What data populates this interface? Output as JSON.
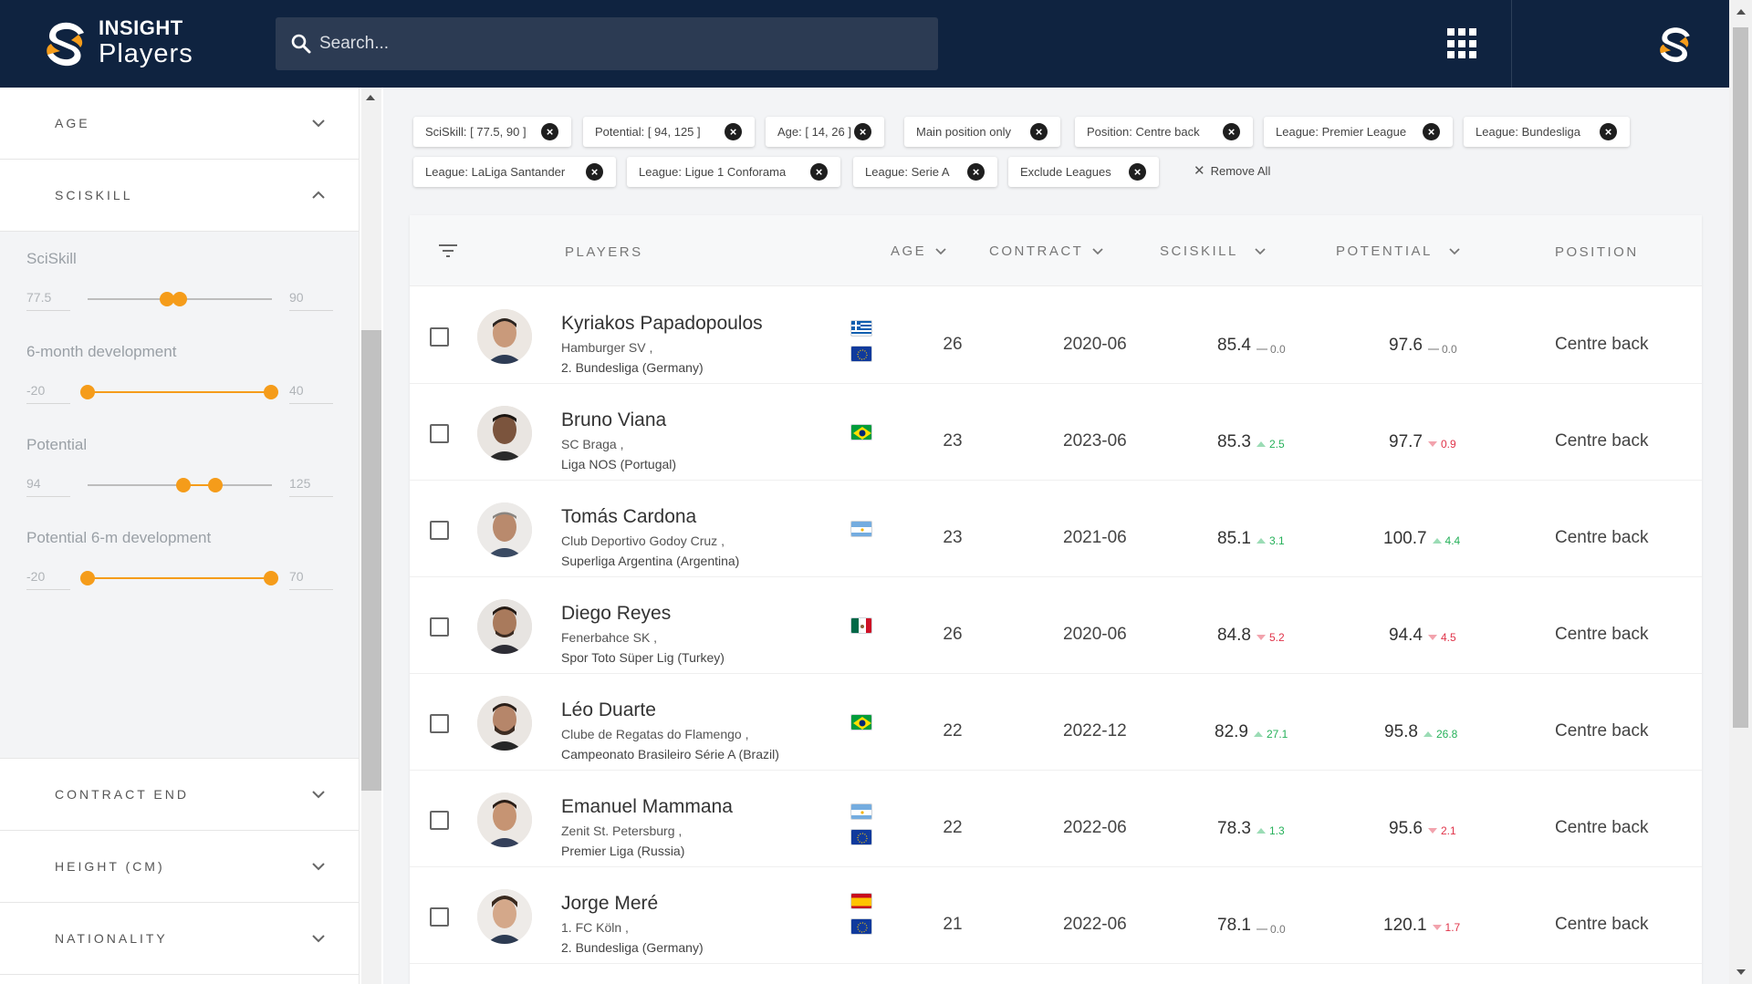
{
  "brand": {
    "line1": "INSIGHT",
    "line2": "Players"
  },
  "search": {
    "placeholder": "Search..."
  },
  "sidebar": {
    "age_title": "AGE",
    "sciskill_title": "SCISKILL",
    "filters": [
      {
        "label": "SciSkill",
        "min": "77.5",
        "max": "90"
      },
      {
        "label": "6-month development",
        "min": "-20",
        "max": "40"
      },
      {
        "label": "Potential",
        "min": "94",
        "max": "125"
      },
      {
        "label": "Potential 6-m development",
        "min": "-20",
        "max": "70"
      }
    ],
    "contract_title": "CONTRACT END",
    "height_title": "HEIGHT (CM)",
    "nationality_title": "NATIONALITY"
  },
  "chips": [
    "SciSkill: [ 77.5, 90 ]",
    "Potential: [ 94, 125 ]",
    "Age: [ 14, 26 ]",
    "Main position only",
    "Position: Centre back",
    "League: Premier League",
    "League: Bundesliga",
    "League: LaLiga Santander",
    "League: Ligue 1 Conforama",
    "League: Serie A",
    "Exclude Leagues"
  ],
  "remove_all": "Remove All",
  "table": {
    "headers": {
      "players": "PLAYERS",
      "age": "AGE",
      "contract": "CONTRACT",
      "sciskill": "SCISKILL",
      "potential": "POTENTIAL",
      "position": "POSITION"
    },
    "rows": [
      {
        "name": "Kyriakos Papadopoulos",
        "club": "Hamburger SV ,",
        "league": "2. Bundesliga (Germany)",
        "flags": [
          "greece",
          "eu"
        ],
        "age": "26",
        "contract": "2020-06",
        "sciskill": "85.4",
        "sciskill_trend": "0.0",
        "sciskill_dir": "flat",
        "potential": "97.6",
        "potential_trend": "0.0",
        "potential_dir": "flat",
        "position": "Centre back"
      },
      {
        "name": "Bruno Viana",
        "club": "SC Braga ,",
        "league": "Liga NOS (Portugal)",
        "flags": [
          "brazil"
        ],
        "age": "23",
        "contract": "2023-06",
        "sciskill": "85.3",
        "sciskill_trend": "2.5",
        "sciskill_dir": "up",
        "potential": "97.7",
        "potential_trend": "0.9",
        "potential_dir": "down",
        "position": "Centre back"
      },
      {
        "name": "Tomás Cardona",
        "club": "Club Deportivo Godoy Cruz ,",
        "league": "Superliga Argentina (Argentina)",
        "flags": [
          "argentina"
        ],
        "age": "23",
        "contract": "2021-06",
        "sciskill": "85.1",
        "sciskill_trend": "3.1",
        "sciskill_dir": "up",
        "potential": "100.7",
        "potential_trend": "4.4",
        "potential_dir": "up",
        "position": "Centre back"
      },
      {
        "name": "Diego Reyes",
        "club": "Fenerbahce SK ,",
        "league": "Spor Toto Süper Lig (Turkey)",
        "flags": [
          "mexico"
        ],
        "age": "26",
        "contract": "2020-06",
        "sciskill": "84.8",
        "sciskill_trend": "5.2",
        "sciskill_dir": "down",
        "potential": "94.4",
        "potential_trend": "4.5",
        "potential_dir": "down",
        "position": "Centre back"
      },
      {
        "name": "Léo Duarte",
        "club": "Clube de Regatas do Flamengo ,",
        "league": "Campeonato Brasileiro Série A (Brazil)",
        "flags": [
          "brazil"
        ],
        "age": "22",
        "contract": "2022-12",
        "sciskill": "82.9",
        "sciskill_trend": "27.1",
        "sciskill_dir": "up",
        "potential": "95.8",
        "potential_trend": "26.8",
        "potential_dir": "up",
        "position": "Centre back"
      },
      {
        "name": "Emanuel Mammana",
        "club": "Zenit St. Petersburg ,",
        "league": "Premier Liga (Russia)",
        "flags": [
          "argentina",
          "eu"
        ],
        "age": "22",
        "contract": "2022-06",
        "sciskill": "78.3",
        "sciskill_trend": "1.3",
        "sciskill_dir": "up",
        "potential": "95.6",
        "potential_trend": "2.1",
        "potential_dir": "down",
        "position": "Centre back"
      },
      {
        "name": "Jorge Meré",
        "club": "1. FC Köln ,",
        "league": "2. Bundesliga (Germany)",
        "flags": [
          "spain",
          "eu"
        ],
        "age": "21",
        "contract": "2022-06",
        "sciskill": "78.1",
        "sciskill_trend": "0.0",
        "sciskill_dir": "flat",
        "potential": "120.1",
        "potential_trend": "1.7",
        "potential_dir": "down",
        "position": "Centre back"
      }
    ]
  },
  "colors": {
    "header": "#0f2340",
    "accent": "#f59c1a",
    "up": "#26b15a",
    "down": "#e0344a"
  }
}
